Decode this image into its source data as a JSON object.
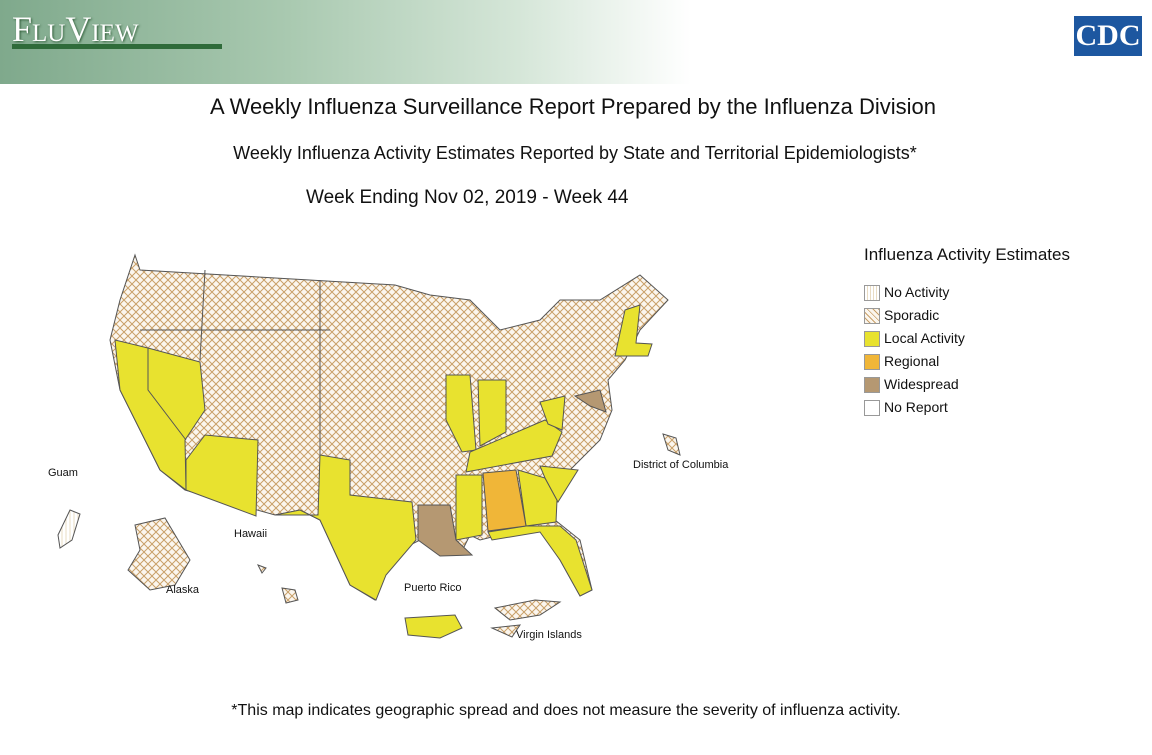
{
  "header": {
    "brand": "FluView",
    "logo": "CDC"
  },
  "title": "A Weekly Influenza Surveillance Report Prepared by the Influenza Division",
  "subtitle": "Weekly Influenza Activity Estimates Reported by State and Territorial Epidemiologists*",
  "week": "Week Ending Nov 02, 2019 - Week 44",
  "legend": {
    "title": "Influenza Activity Estimates",
    "items": [
      "No Activity",
      "Sporadic",
      "Local Activity",
      "Regional",
      "Widespread",
      "No Report"
    ]
  },
  "map_labels": {
    "guam": "Guam",
    "hawaii": "Hawaii",
    "alaska": "Alaska",
    "puerto_rico": "Puerto Rico",
    "virgin_islands": "Virgin Islands",
    "dc": "District of Columbia"
  },
  "footnote": "*This map indicates geographic spread and does not measure the severity of influenza activity."
}
